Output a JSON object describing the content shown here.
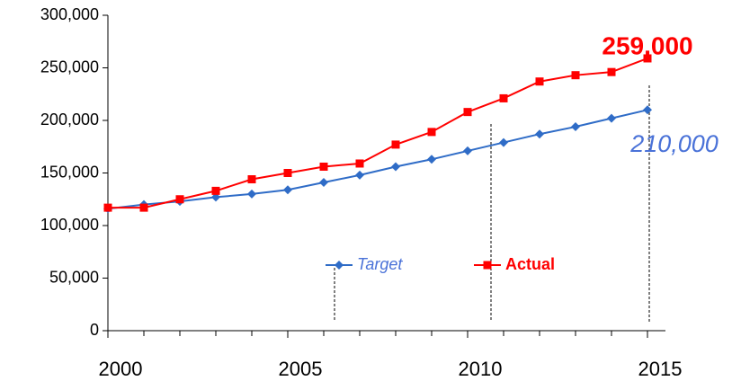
{
  "chart_data": {
    "type": "line",
    "x": [
      2000,
      2001,
      2002,
      2003,
      2004,
      2005,
      2006,
      2007,
      2008,
      2009,
      2010,
      2011,
      2012,
      2013,
      2014,
      2015
    ],
    "series": [
      {
        "name": "Target",
        "color": "#2f6cc7",
        "values": [
          116000,
          120000,
          123000,
          127000,
          130000,
          134000,
          141000,
          148000,
          156000,
          163000,
          171000,
          179000,
          187000,
          194000,
          202000,
          210000
        ]
      },
      {
        "name": "Actual",
        "color": "#ff0000",
        "values": [
          117000,
          117000,
          125000,
          133000,
          144000,
          150000,
          156000,
          159000,
          177000,
          189000,
          208000,
          221000,
          237000,
          243000,
          246000,
          259000
        ]
      }
    ],
    "xlim": [
      2000,
      2015.5
    ],
    "xticks": [
      2000,
      2005,
      2010,
      2015
    ],
    "ylim": [
      0,
      300000
    ],
    "yticks": [
      0,
      {
        "value": 50000,
        "label": "50,000"
      },
      {
        "value": 100000,
        "label": "100,000"
      },
      {
        "value": 150000,
        "label": "150,000"
      },
      {
        "value": 200000,
        "label": "200,000"
      },
      {
        "value": 250000,
        "label": "250,000"
      },
      {
        "value": 300000,
        "label": "300,000"
      }
    ],
    "annotations": [
      "259,000",
      "210,000"
    ],
    "legend": "bottom-center"
  }
}
